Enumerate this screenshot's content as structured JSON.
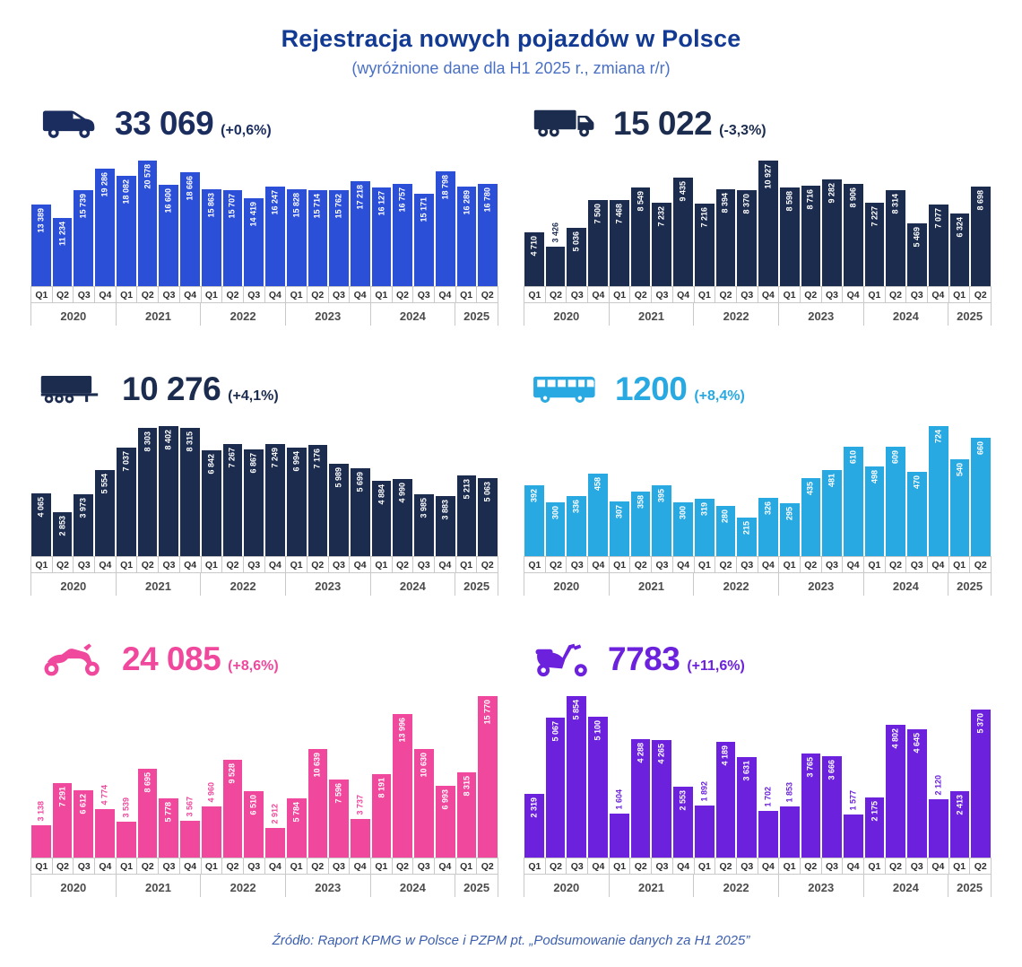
{
  "title": "Rejestracja nowych pojazdów w Polsce",
  "subtitle": "(wyróżnione dane dla H1 2025 r., zmiana r/r)",
  "footer": "Źródło: Raport KPMG w Polsce i PZPM pt. „Podsumowanie danych za H1 2025”",
  "colors": {
    "title_color": "#123A93",
    "subtitle_color": "#4A70C4",
    "footer_color": "#3C5FAE",
    "axis_border": "#c9c9c9",
    "quarter_text": "#2e2e2e",
    "year_text": "#4c4c4c"
  },
  "quarters": [
    "Q1",
    "Q2",
    "Q3",
    "Q4",
    "Q1",
    "Q2",
    "Q3",
    "Q4",
    "Q1",
    "Q2",
    "Q3",
    "Q4",
    "Q1",
    "Q2",
    "Q3",
    "Q4",
    "Q1",
    "Q2",
    "Q3",
    "Q4",
    "Q1",
    "Q2"
  ],
  "year_groups": [
    {
      "label": "2020",
      "span": 4
    },
    {
      "label": "2021",
      "span": 4
    },
    {
      "label": "2022",
      "span": 4
    },
    {
      "label": "2023",
      "span": 4
    },
    {
      "label": "2024",
      "span": 4
    },
    {
      "label": "2025",
      "span": 2
    }
  ],
  "chart_data": [
    {
      "type": "bar",
      "icon": "van-icon",
      "headline": "33 069",
      "change": "(+0,6%)",
      "bar_color": "#2B4FD6",
      "accent_color": "#1B2D5E",
      "ymax": 20578,
      "values": [
        13389,
        11234,
        15739,
        19286,
        18082,
        20578,
        16600,
        18666,
        15863,
        15707,
        14419,
        16247,
        15828,
        15714,
        15762,
        17218,
        16127,
        16757,
        15171,
        18798,
        16289,
        16780
      ],
      "label_out": []
    },
    {
      "type": "bar",
      "icon": "truck-icon",
      "headline": "15 022",
      "change": "(-3,3%)",
      "bar_color": "#1C2C4F",
      "accent_color": "#1C2C4F",
      "ymax": 10927,
      "values": [
        4710,
        3426,
        5036,
        7500,
        7468,
        8549,
        7232,
        9435,
        7216,
        8394,
        8370,
        10927,
        8598,
        8716,
        9282,
        8906,
        7227,
        8314,
        5469,
        7077,
        6324,
        8698
      ],
      "label_out": [
        1
      ]
    },
    {
      "type": "bar",
      "icon": "semi-trailer-icon",
      "headline": "10 276",
      "change": "(+4,1%)",
      "bar_color": "#1C2C4F",
      "accent_color": "#1C2C4F",
      "ymax": 8402,
      "values": [
        4065,
        2853,
        3973,
        5554,
        7037,
        8303,
        8402,
        8315,
        6842,
        7267,
        6867,
        7249,
        6994,
        7176,
        5989,
        5699,
        4884,
        4990,
        3985,
        3883,
        5213,
        5063
      ],
      "label_out": []
    },
    {
      "type": "bar",
      "icon": "bus-icon",
      "headline": "1200",
      "change": "(+8,4%)",
      "bar_color": "#29A9E1",
      "accent_color": "#29A9E1",
      "ymax": 724,
      "values": [
        392,
        300,
        336,
        458,
        307,
        358,
        395,
        300,
        319,
        280,
        215,
        326,
        295,
        435,
        481,
        610,
        498,
        609,
        470,
        724,
        540,
        660
      ],
      "label_out": []
    },
    {
      "type": "bar",
      "icon": "motorcycle-icon",
      "headline": "24 085",
      "change": "(+8,6%)",
      "bar_color": "#F0489D",
      "accent_color": "#F0489D",
      "ymax": 15770,
      "values": [
        3138,
        7291,
        6612,
        4774,
        3539,
        8695,
        5778,
        3567,
        4960,
        9528,
        6510,
        2912,
        5784,
        10639,
        7596,
        3737,
        8191,
        13996,
        10630,
        6993,
        8315,
        15770
      ],
      "label_out": [
        0,
        3,
        4,
        7,
        8,
        11,
        15
      ]
    },
    {
      "type": "bar",
      "icon": "scooter-icon",
      "headline": "7783",
      "change": "(+11,6%)",
      "bar_color": "#6C22DC",
      "accent_color": "#6C22DC",
      "ymax": 5854,
      "values": [
        2319,
        5067,
        5854,
        5100,
        1604,
        4288,
        4265,
        2553,
        1892,
        4189,
        3631,
        1702,
        1853,
        3765,
        3666,
        1577,
        2175,
        4802,
        4645,
        2120,
        2413,
        5370
      ],
      "label_out": [
        4,
        8,
        11,
        12,
        15,
        19
      ]
    }
  ]
}
